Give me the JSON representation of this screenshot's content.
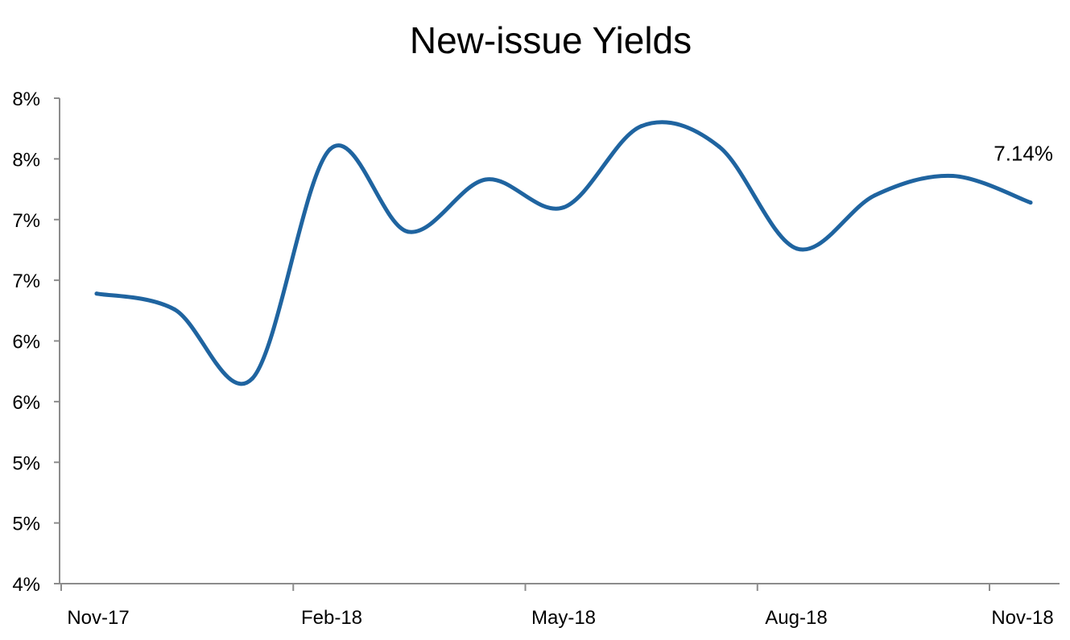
{
  "chart_data": {
    "type": "line",
    "title": "New-issue Yields",
    "xlabel": "",
    "ylabel": "",
    "x_tick_labels": [
      "Nov-17",
      "Feb-18",
      "May-18",
      "Aug-18",
      "Nov-18"
    ],
    "y_tick_labels": [
      "4%",
      "5%",
      "5%",
      "6%",
      "6%",
      "7%",
      "7%",
      "8%",
      "8%"
    ],
    "ylim": [
      4.0,
      8.0
    ],
    "grid": false,
    "legend": "none",
    "series": [
      {
        "color": "#1f64a0",
        "x": [
          "Nov-17",
          "Dec-17",
          "Jan-18",
          "Feb-18",
          "Mar-18",
          "Apr-18",
          "May-18",
          "Jun-18",
          "Jul-18",
          "Aug-18",
          "Sep-18",
          "Oct-18",
          "Nov-18"
        ],
        "values": [
          6.39,
          6.26,
          5.69,
          7.58,
          6.9,
          7.33,
          7.1,
          7.77,
          7.6,
          6.76,
          7.2,
          7.36,
          7.14
        ]
      }
    ],
    "annotations": [
      {
        "text": "7.14%",
        "point_index": 12
      }
    ]
  }
}
